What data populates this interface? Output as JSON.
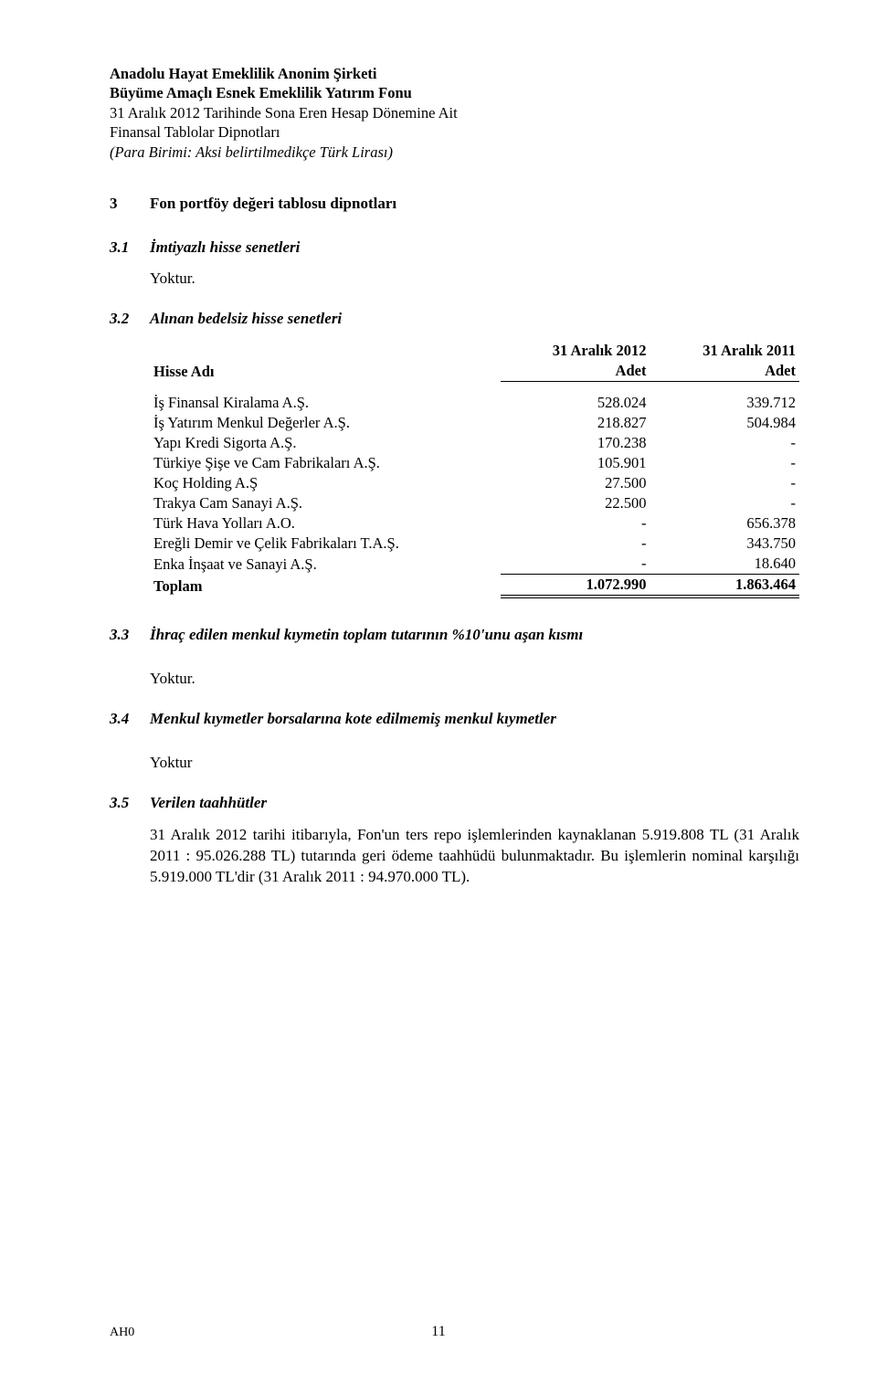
{
  "header": {
    "line1": "Anadolu Hayat Emeklilik Anonim Şirketi",
    "line2": "Büyüme Amaçlı Esnek Emeklilik Yatırım Fonu",
    "line3": "31 Aralık 2012 Tarihinde Sona Eren Hesap Dönemine Ait",
    "line4": "Finansal Tablolar Dipnotları",
    "line5": "(Para Birimi: Aksi belirtilmedikçe Türk Lirası)"
  },
  "sections": {
    "s3": {
      "num": "3",
      "title": "Fon portföy değeri tablosu dipnotları"
    },
    "s3_1": {
      "num": "3.1",
      "title": "İmtiyazlı hisse senetleri"
    },
    "s3_2": {
      "num": "3.2",
      "title": "Alınan bedelsiz hisse senetleri"
    },
    "s3_3": {
      "num": "3.3",
      "title": "İhraç edilen menkul kıymetin toplam tutarının %10'unu aşan kısmı"
    },
    "s3_4": {
      "num": "3.4",
      "title": "Menkul kıymetler borsalarına kote edilmemiş menkul kıymetler"
    },
    "s3_5": {
      "num": "3.5",
      "title": "Verilen taahhütler"
    }
  },
  "yoktur": "Yoktur.",
  "yoktur_noperiod": "Yoktur",
  "table": {
    "headers": {
      "label": "Hisse Adı",
      "col1_top": "31 Aralık 2012",
      "col1_bot": "Adet",
      "col2_top": "31 Aralık 2011",
      "col2_bot": "Adet"
    },
    "rows": [
      {
        "label": "İş Finansal Kiralama A.Ş.",
        "v1": "528.024",
        "v2": "339.712"
      },
      {
        "label": "İş Yatırım Menkul Değerler A.Ş.",
        "v1": "218.827",
        "v2": "504.984"
      },
      {
        "label": "Yapı Kredi Sigorta A.Ş.",
        "v1": "170.238",
        "v2": "-"
      },
      {
        "label": "Türkiye Şişe ve Cam Fabrikaları A.Ş.",
        "v1": "105.901",
        "v2": "-"
      },
      {
        "label": "Koç Holding A.Ş",
        "v1": "27.500",
        "v2": "-"
      },
      {
        "label": "Trakya Cam Sanayi A.Ş.",
        "v1": "22.500",
        "v2": "-"
      },
      {
        "label": "Türk Hava Yolları A.O.",
        "v1": "-",
        "v2": "656.378"
      },
      {
        "label": "Ereğli Demir ve Çelik Fabrikaları T.A.Ş.",
        "v1": "-",
        "v2": "343.750"
      },
      {
        "label": "Enka İnşaat ve Sanayi A.Ş.",
        "v1": "-",
        "v2": "18.640"
      }
    ],
    "total": {
      "label": "Toplam",
      "v1": "1.072.990",
      "v2": "1.863.464"
    }
  },
  "s3_5_body": "31 Aralık 2012  tarihi itibarıyla, Fon'un ters repo işlemlerinden kaynaklanan 5.919.808 TL (31 Aralık 2011 : 95.026.288  TL) tutarında geri ödeme taahhüdü bulunmaktadır. Bu işlemlerin nominal karşılığı 5.919.000 TL'dir (31 Aralık 2011 : 94.970.000 TL).",
  "footer": {
    "code": "AH0",
    "page": "11"
  }
}
